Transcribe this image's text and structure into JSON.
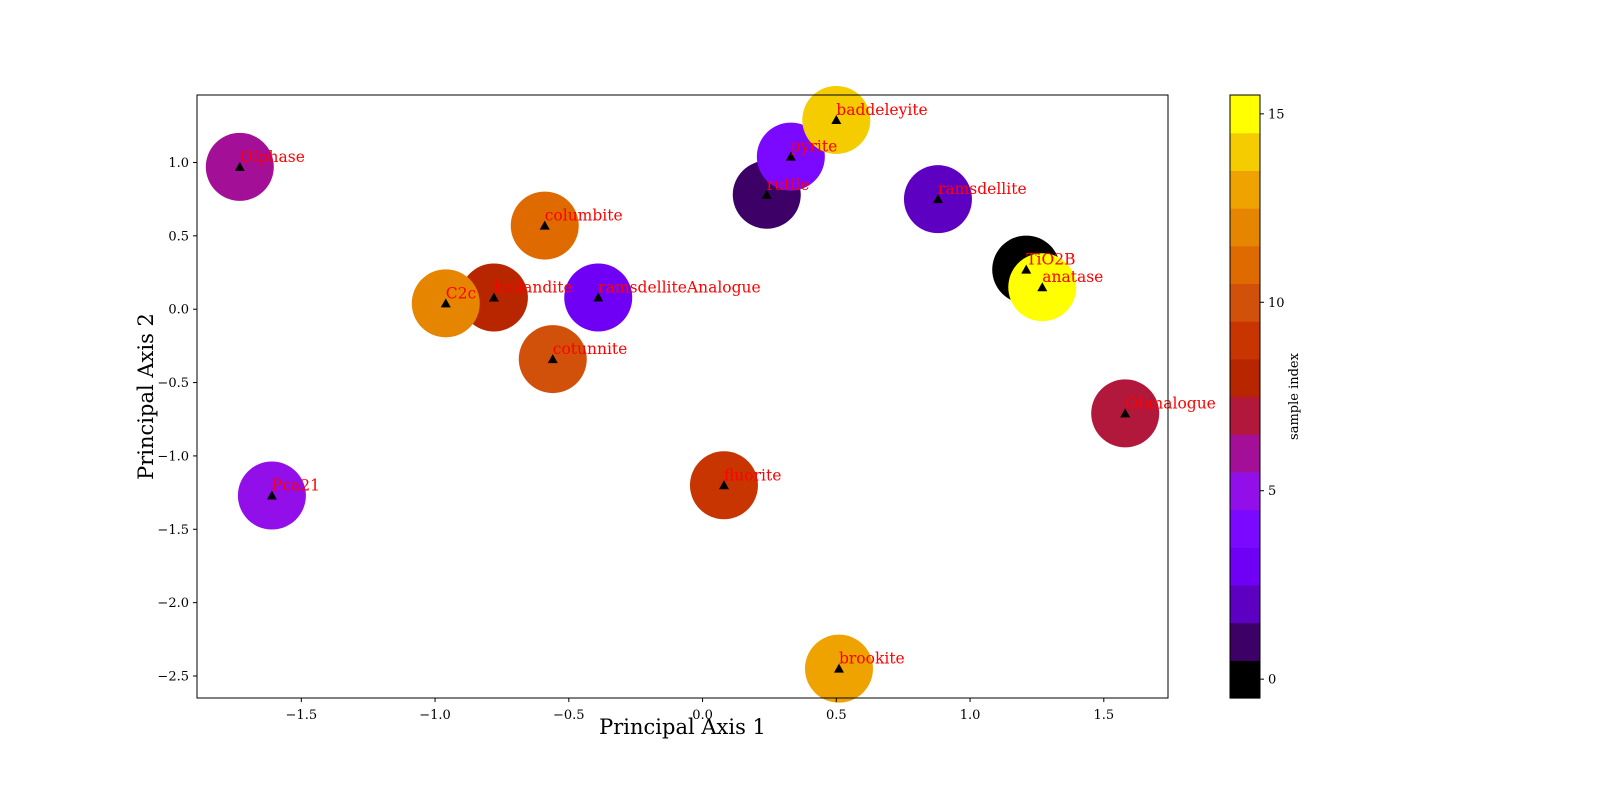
{
  "chart_data": {
    "type": "scatter",
    "xlabel": "Principal Axis 1",
    "ylabel": "Principal Axis 2",
    "xlim": [
      -1.89,
      1.74
    ],
    "ylim": [
      -2.65,
      1.46
    ],
    "xticks": [
      -1.5,
      -1.0,
      -0.5,
      0.0,
      0.5,
      1.0,
      1.5
    ],
    "xtick_labels": [
      "−1.5",
      "−1.0",
      "−0.5",
      "0.0",
      "0.5",
      "1.0",
      "1.5"
    ],
    "yticks": [
      1.0,
      0.5,
      0.0,
      -0.5,
      -1.0,
      -1.5,
      -2.0,
      -2.5
    ],
    "ytick_labels": [
      "1.0",
      "0.5",
      "0.0",
      "−0.5",
      "−1.0",
      "−1.5",
      "−2.0",
      "−2.5"
    ],
    "colorbar": {
      "label": "sample index",
      "range": [
        -0.5,
        15.5
      ],
      "ticks": [
        0,
        5,
        10,
        15
      ],
      "tick_labels": [
        "0",
        "5",
        "10",
        "15"
      ],
      "colors": [
        "#000000",
        "#3d0066",
        "#5e00c2",
        "#6f00f5",
        "#7b08ff",
        "#930fea",
        "#a31097",
        "#b1183c",
        "#b82600",
        "#c93500",
        "#d2510a",
        "#de6a00",
        "#e68600",
        "#eea300",
        "#f4cc00",
        "#ffff00"
      ]
    },
    "points": [
      {
        "label": "TiO2B",
        "x": 1.21,
        "y": 0.27,
        "index": 0
      },
      {
        "label": "rutile",
        "x": 0.24,
        "y": 0.78,
        "index": 1
      },
      {
        "label": "ramsdellite",
        "x": 0.88,
        "y": 0.75,
        "index": 2
      },
      {
        "label": "ramsdelliteAnalogue",
        "x": -0.39,
        "y": 0.08,
        "index": 3
      },
      {
        "label": "pyrite",
        "x": 0.33,
        "y": 1.04,
        "index": 4
      },
      {
        "label": "Pca21",
        "x": -1.61,
        "y": -1.27,
        "index": 5
      },
      {
        "label": "OIphase",
        "x": -1.73,
        "y": 0.97,
        "index": 6
      },
      {
        "label": "OIanalogue",
        "x": 1.58,
        "y": -0.71,
        "index": 7
      },
      {
        "label": "hollandite",
        "x": -0.78,
        "y": 0.08,
        "index": 8
      },
      {
        "label": "fluorite",
        "x": 0.08,
        "y": -1.2,
        "index": 9
      },
      {
        "label": "cotunnite",
        "x": -0.56,
        "y": -0.34,
        "index": 10
      },
      {
        "label": "columbite",
        "x": -0.59,
        "y": 0.57,
        "index": 11
      },
      {
        "label": "C2c",
        "x": -0.96,
        "y": 0.04,
        "index": 12
      },
      {
        "label": "brookite",
        "x": 0.51,
        "y": -2.45,
        "index": 13
      },
      {
        "label": "baddeleyite",
        "x": 0.5,
        "y": 1.29,
        "index": 14
      },
      {
        "label": "anatase",
        "x": 1.27,
        "y": 0.15,
        "index": 15
      }
    ]
  }
}
